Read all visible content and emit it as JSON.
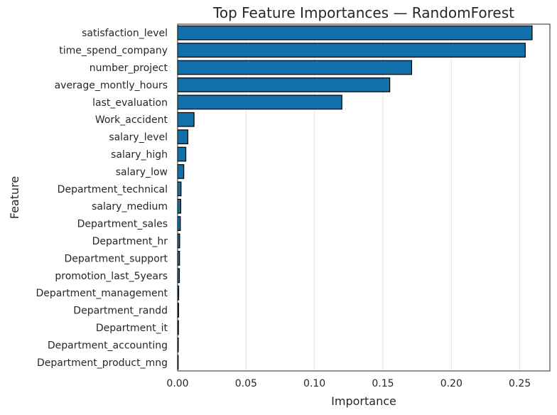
{
  "chart_data": {
    "type": "bar",
    "orientation": "horizontal",
    "title": "Top Feature Importances — RandomForest",
    "xlabel": "Importance",
    "ylabel": "Feature",
    "xlim": [
      0.0,
      0.272
    ],
    "xticks": [
      "0.00",
      "0.05",
      "0.10",
      "0.15",
      "0.20",
      "0.25"
    ],
    "xtick_values": [
      0,
      0.05,
      0.1,
      0.15,
      0.2,
      0.25
    ],
    "grid": "vertical",
    "bar_color": "#1170aa",
    "bar_edge_color": "#000000",
    "categories": [
      "satisfaction_level",
      "time_spend_company",
      "number_project",
      "average_montly_hours",
      "last_evaluation",
      "Work_accident",
      "salary_level",
      "salary_high",
      "salary_low",
      "Department_technical",
      "salary_medium",
      "Department_sales",
      "Department_hr",
      "Department_support",
      "promotion_last_5years",
      "Department_management",
      "Department_randd",
      "Department_it",
      "Department_accounting",
      "Department_product_mng"
    ],
    "values": [
      0.259,
      0.254,
      0.171,
      0.155,
      0.12,
      0.012,
      0.0075,
      0.006,
      0.0045,
      0.0025,
      0.0023,
      0.002,
      0.0015,
      0.0014,
      0.0013,
      0.0008,
      0.0007,
      0.0006,
      0.0005,
      0.0001
    ]
  }
}
